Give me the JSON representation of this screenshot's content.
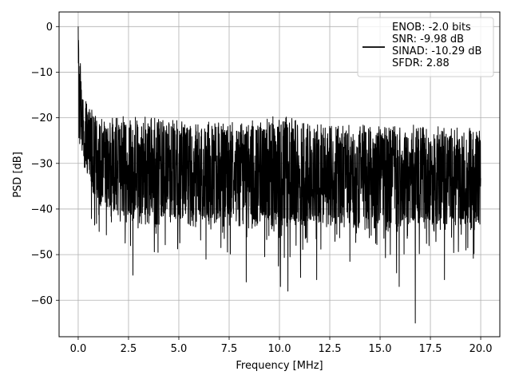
{
  "chart_data": {
    "type": "line",
    "title": "",
    "xlabel": "Frequency [MHz]",
    "ylabel": "PSD [dB]",
    "xlim": [
      -0.95,
      20.95
    ],
    "ylim": [
      -68.0,
      3.2
    ],
    "xticks": [
      0.0,
      2.5,
      5.0,
      7.5,
      10.0,
      12.5,
      15.0,
      17.5,
      20.0
    ],
    "xtick_labels": [
      "0.0",
      "2.5",
      "5.0",
      "7.5",
      "10.0",
      "12.5",
      "15.0",
      "17.5",
      "20.0"
    ],
    "yticks": [
      0,
      -10,
      -20,
      -30,
      -40,
      -50,
      -60
    ],
    "ytick_labels": [
      "0",
      "−10",
      "−20",
      "−30",
      "−40",
      "−50",
      "−60"
    ],
    "grid": true,
    "legend_position": "top-right",
    "series": [
      {
        "name": "ENOB: -2.0 bits\nSNR: -9.98 dB\nSINAD: -10.29 dB\nSFDR: 2.88",
        "color": "#000000",
        "x_range": [
          0,
          20
        ],
        "envelope": [
          {
            "f": 0.0,
            "hi": 0.0,
            "lo": -27
          },
          {
            "f": 0.2,
            "hi": -14,
            "lo": -28
          },
          {
            "f": 0.4,
            "hi": -16,
            "lo": -34
          },
          {
            "f": 0.8,
            "hi": -19,
            "lo": -38
          },
          {
            "f": 1.5,
            "hi": -20,
            "lo": -42
          },
          {
            "f": 2.5,
            "hi": -19.5,
            "lo": -43
          },
          {
            "f": 5.0,
            "hi": -20.5,
            "lo": -44
          },
          {
            "f": 8.0,
            "hi": -21,
            "lo": -44
          },
          {
            "f": 10.0,
            "hi": -19.5,
            "lo": -45
          },
          {
            "f": 12.5,
            "hi": -21.5,
            "lo": -44
          },
          {
            "f": 15.0,
            "hi": -21.5,
            "lo": -45
          },
          {
            "f": 17.5,
            "hi": -21.5,
            "lo": -45
          },
          {
            "f": 20.0,
            "hi": -22.5,
            "lo": -45
          }
        ],
        "deep_nulls": [
          {
            "f": 2.72,
            "v": -54.5
          },
          {
            "f": 6.35,
            "v": -51.0
          },
          {
            "f": 8.35,
            "v": -56.0
          },
          {
            "f": 9.95,
            "v": -52.5
          },
          {
            "f": 10.05,
            "v": -57.0
          },
          {
            "f": 10.42,
            "v": -58.0
          },
          {
            "f": 11.05,
            "v": -55.0
          },
          {
            "f": 11.85,
            "v": -55.5
          },
          {
            "f": 13.5,
            "v": -51.5
          },
          {
            "f": 15.82,
            "v": -54.0
          },
          {
            "f": 15.95,
            "v": -57.0
          },
          {
            "f": 16.75,
            "v": -65.0
          },
          {
            "f": 18.2,
            "v": -55.5
          }
        ]
      }
    ]
  }
}
